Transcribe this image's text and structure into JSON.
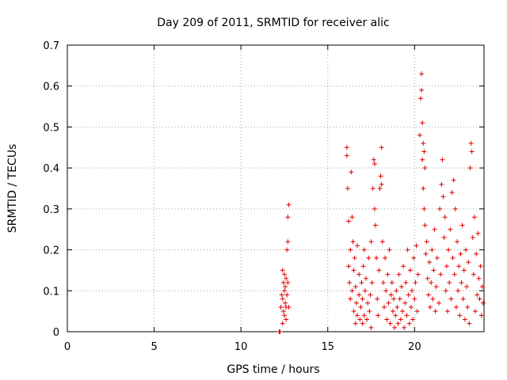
{
  "chart_data": {
    "type": "scatter",
    "title": "Day 209 of 2011, SRMTID for receiver alic",
    "xlabel": "GPS time / hours",
    "ylabel": "SRMTID / TECUs",
    "xlim": [
      0,
      24
    ],
    "ylim": [
      0,
      0.7
    ],
    "xticks": [
      0,
      5,
      10,
      15,
      20
    ],
    "yticks": [
      0,
      0.1,
      0.2,
      0.3,
      0.4,
      0.5,
      0.6,
      0.7
    ],
    "grid": true,
    "marker": "+",
    "color": "#e00000",
    "series": [
      {
        "name": "SRMTID",
        "points": [
          [
            12.2,
            0.0
          ],
          [
            12.25,
            0.0
          ],
          [
            12.3,
            0.06
          ],
          [
            12.35,
            0.09
          ],
          [
            12.4,
            0.15
          ],
          [
            12.4,
            0.08
          ],
          [
            12.45,
            0.12
          ],
          [
            12.45,
            0.05
          ],
          [
            12.5,
            0.1
          ],
          [
            12.5,
            0.04
          ],
          [
            12.55,
            0.07
          ],
          [
            12.55,
            0.11
          ],
          [
            12.6,
            0.13
          ],
          [
            12.6,
            0.03
          ],
          [
            12.65,
            0.2
          ],
          [
            12.65,
            0.09
          ],
          [
            12.7,
            0.22
          ],
          [
            12.7,
            0.28
          ],
          [
            12.75,
            0.31
          ],
          [
            12.75,
            0.06
          ],
          [
            12.5,
            0.14
          ],
          [
            12.6,
            0.06
          ],
          [
            12.4,
            0.02
          ],
          [
            12.7,
            0.12
          ],
          [
            16.1,
            0.45
          ],
          [
            16.1,
            0.43
          ],
          [
            16.15,
            0.35
          ],
          [
            16.2,
            0.27
          ],
          [
            16.2,
            0.16
          ],
          [
            16.25,
            0.12
          ],
          [
            16.3,
            0.2
          ],
          [
            16.3,
            0.08
          ],
          [
            16.35,
            0.39
          ],
          [
            16.4,
            0.28
          ],
          [
            16.4,
            0.1
          ],
          [
            16.45,
            0.22
          ],
          [
            16.5,
            0.05
          ],
          [
            16.5,
            0.15
          ],
          [
            16.55,
            0.18
          ],
          [
            16.6,
            0.02
          ],
          [
            16.6,
            0.11
          ],
          [
            16.65,
            0.07
          ],
          [
            16.7,
            0.21
          ],
          [
            16.7,
            0.04
          ],
          [
            16.8,
            0.09
          ],
          [
            16.8,
            0.14
          ],
          [
            16.85,
            0.03
          ],
          [
            16.9,
            0.06
          ],
          [
            16.95,
            0.12
          ],
          [
            17.0,
            0.02
          ],
          [
            17.0,
            0.08
          ],
          [
            17.05,
            0.16
          ],
          [
            17.1,
            0.04
          ],
          [
            17.1,
            0.2
          ],
          [
            17.15,
            0.1
          ],
          [
            17.2,
            0.13
          ],
          [
            17.25,
            0.03
          ],
          [
            17.3,
            0.07
          ],
          [
            17.35,
            0.18
          ],
          [
            17.4,
            0.05
          ],
          [
            17.45,
            0.09
          ],
          [
            17.5,
            0.22
          ],
          [
            17.5,
            0.01
          ],
          [
            17.55,
            0.12
          ],
          [
            17.6,
            0.35
          ],
          [
            17.65,
            0.42
          ],
          [
            17.7,
            0.41
          ],
          [
            17.7,
            0.3
          ],
          [
            17.75,
            0.26
          ],
          [
            17.8,
            0.18
          ],
          [
            17.85,
            0.08
          ],
          [
            17.9,
            0.04
          ],
          [
            17.95,
            0.15
          ],
          [
            18.0,
            0.35
          ],
          [
            18.05,
            0.38
          ],
          [
            18.1,
            0.45
          ],
          [
            18.1,
            0.36
          ],
          [
            18.15,
            0.22
          ],
          [
            18.2,
            0.12
          ],
          [
            18.25,
            0.06
          ],
          [
            18.3,
            0.18
          ],
          [
            18.35,
            0.1
          ],
          [
            18.4,
            0.03
          ],
          [
            18.45,
            0.14
          ],
          [
            18.5,
            0.07
          ],
          [
            18.55,
            0.2
          ],
          [
            18.6,
            0.02
          ],
          [
            18.65,
            0.09
          ],
          [
            18.7,
            0.12
          ],
          [
            18.75,
            0.05
          ],
          [
            18.8,
            0.08
          ],
          [
            18.85,
            0.01
          ],
          [
            18.9,
            0.04
          ],
          [
            18.95,
            0.1
          ],
          [
            19.0,
            0.06
          ],
          [
            19.05,
            0.02
          ],
          [
            19.1,
            0.14
          ],
          [
            19.15,
            0.08
          ],
          [
            19.2,
            0.03
          ],
          [
            19.25,
            0.11
          ],
          [
            19.3,
            0.05
          ],
          [
            19.35,
            0.16
          ],
          [
            19.4,
            0.01
          ],
          [
            19.45,
            0.07
          ],
          [
            19.5,
            0.12
          ],
          [
            19.55,
            0.04
          ],
          [
            19.6,
            0.2
          ],
          [
            19.65,
            0.09
          ],
          [
            19.7,
            0.02
          ],
          [
            19.75,
            0.15
          ],
          [
            19.8,
            0.06
          ],
          [
            19.85,
            0.1
          ],
          [
            19.9,
            0.03
          ],
          [
            19.95,
            0.18
          ],
          [
            20.0,
            0.08
          ],
          [
            20.05,
            0.12
          ],
          [
            20.1,
            0.21
          ],
          [
            20.15,
            0.05
          ],
          [
            20.2,
            0.14
          ],
          [
            20.3,
            0.48
          ],
          [
            20.35,
            0.57
          ],
          [
            20.4,
            0.63
          ],
          [
            20.4,
            0.59
          ],
          [
            20.45,
            0.51
          ],
          [
            20.45,
            0.42
          ],
          [
            20.5,
            0.46
          ],
          [
            20.5,
            0.35
          ],
          [
            20.55,
            0.3
          ],
          [
            20.55,
            0.44
          ],
          [
            20.6,
            0.26
          ],
          [
            20.6,
            0.4
          ],
          [
            20.65,
            0.19
          ],
          [
            20.7,
            0.22
          ],
          [
            20.75,
            0.13
          ],
          [
            20.8,
            0.09
          ],
          [
            20.85,
            0.17
          ],
          [
            20.9,
            0.06
          ],
          [
            20.95,
            0.12
          ],
          [
            21.0,
            0.2
          ],
          [
            21.05,
            0.08
          ],
          [
            21.1,
            0.15
          ],
          [
            21.15,
            0.25
          ],
          [
            21.2,
            0.05
          ],
          [
            21.25,
            0.11
          ],
          [
            21.3,
            0.18
          ],
          [
            21.4,
            0.07
          ],
          [
            21.45,
            0.3
          ],
          [
            21.5,
            0.14
          ],
          [
            21.55,
            0.36
          ],
          [
            21.6,
            0.42
          ],
          [
            21.65,
            0.33
          ],
          [
            21.7,
            0.23
          ],
          [
            21.75,
            0.28
          ],
          [
            21.8,
            0.1
          ],
          [
            21.85,
            0.16
          ],
          [
            21.9,
            0.05
          ],
          [
            21.95,
            0.2
          ],
          [
            22.0,
            0.12
          ],
          [
            22.05,
            0.25
          ],
          [
            22.1,
            0.08
          ],
          [
            22.15,
            0.34
          ],
          [
            22.2,
            0.18
          ],
          [
            22.25,
            0.37
          ],
          [
            22.3,
            0.14
          ],
          [
            22.35,
            0.3
          ],
          [
            22.4,
            0.06
          ],
          [
            22.45,
            0.22
          ],
          [
            22.5,
            0.1
          ],
          [
            22.55,
            0.16
          ],
          [
            22.6,
            0.04
          ],
          [
            22.65,
            0.19
          ],
          [
            22.7,
            0.12
          ],
          [
            22.75,
            0.26
          ],
          [
            22.8,
            0.08
          ],
          [
            22.85,
            0.15
          ],
          [
            22.9,
            0.03
          ],
          [
            22.95,
            0.2
          ],
          [
            23.0,
            0.11
          ],
          [
            23.05,
            0.06
          ],
          [
            23.1,
            0.17
          ],
          [
            23.15,
            0.02
          ],
          [
            23.2,
            0.4
          ],
          [
            23.25,
            0.46
          ],
          [
            23.3,
            0.44
          ],
          [
            23.35,
            0.23
          ],
          [
            23.4,
            0.14
          ],
          [
            23.45,
            0.28
          ],
          [
            23.5,
            0.05
          ],
          [
            23.55,
            0.19
          ],
          [
            23.6,
            0.09
          ],
          [
            23.65,
            0.24
          ],
          [
            23.7,
            0.13
          ],
          [
            23.75,
            0.08
          ],
          [
            23.8,
            0.16
          ],
          [
            23.85,
            0.04
          ],
          [
            23.9,
            0.11
          ],
          [
            23.95,
            0.07
          ]
        ]
      }
    ]
  }
}
